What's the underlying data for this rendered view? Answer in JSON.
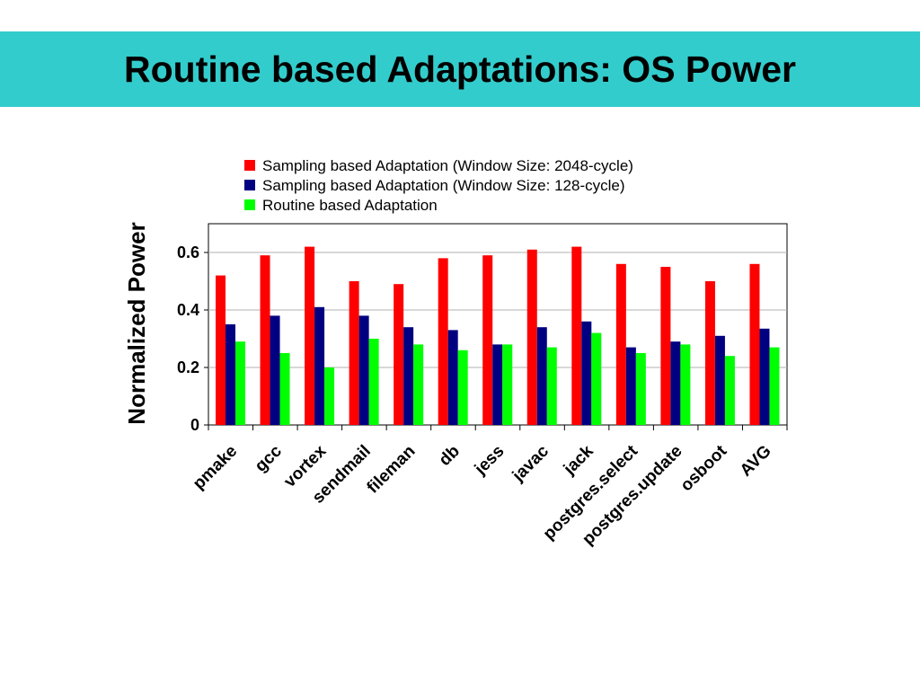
{
  "slide": {
    "title": "Routine based Adaptations: OS Power",
    "title_bar_color": "#33cccc"
  },
  "chart_data": {
    "type": "bar",
    "ylabel": "Normalized Power",
    "xlabel": "",
    "ylim": [
      0,
      0.7
    ],
    "yticks": [
      0,
      0.2,
      0.4,
      0.6
    ],
    "ytick_labels": [
      "0",
      "0.2",
      "0.4",
      "0.6"
    ],
    "grid": true,
    "legend_position": "top",
    "categories": [
      "pmake",
      "gcc",
      "vortex",
      "sendmail",
      "fileman",
      "db",
      "jess",
      "javac",
      "jack",
      "postgres.select",
      "postgres.update",
      "osboot",
      "AVG"
    ],
    "series": [
      {
        "name": "Sampling based Adaptation (Window Size: 2048-cycle)",
        "color": "#ff0000",
        "values": [
          0.52,
          0.59,
          0.62,
          0.5,
          0.49,
          0.58,
          0.59,
          0.61,
          0.62,
          0.56,
          0.55,
          0.5,
          0.56
        ]
      },
      {
        "name": "Sampling based Adaptation (Window Size: 128-cycle)",
        "color": "#000080",
        "values": [
          0.35,
          0.38,
          0.41,
          0.38,
          0.34,
          0.33,
          0.28,
          0.34,
          0.36,
          0.27,
          0.29,
          0.31,
          0.335
        ]
      },
      {
        "name": "Routine based Adaptation",
        "color": "#00ff00",
        "values": [
          0.29,
          0.25,
          0.2,
          0.3,
          0.28,
          0.26,
          0.28,
          0.27,
          0.32,
          0.25,
          0.28,
          0.24,
          0.27
        ]
      }
    ]
  }
}
